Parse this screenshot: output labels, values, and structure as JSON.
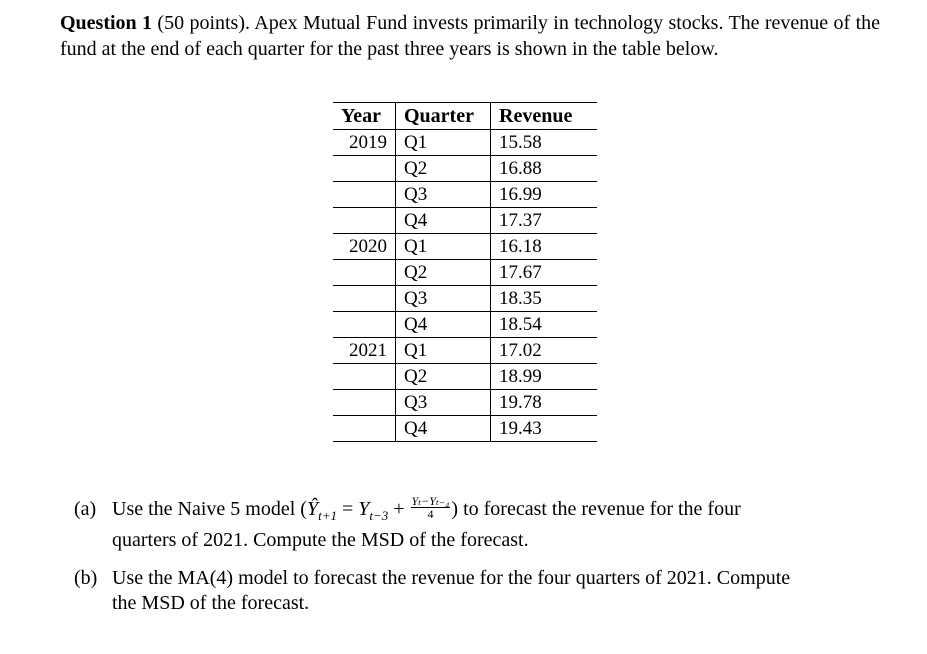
{
  "question": {
    "title": "Question 1",
    "points": "(50 points).",
    "text": "Apex Mutual Fund invests primarily in technology stocks. The revenue of the fund at the end of each quarter for the past three years is shown in the table below."
  },
  "table": {
    "headers": [
      "Year",
      "Quarter",
      "Revenue"
    ],
    "rows": [
      {
        "year": "2019",
        "quarter": "Q1",
        "revenue": "15.58"
      },
      {
        "year": "",
        "quarter": "Q2",
        "revenue": "16.88"
      },
      {
        "year": "",
        "quarter": "Q3",
        "revenue": "16.99"
      },
      {
        "year": "",
        "quarter": "Q4",
        "revenue": "17.37"
      },
      {
        "year": "2020",
        "quarter": "Q1",
        "revenue": "16.18"
      },
      {
        "year": "",
        "quarter": "Q2",
        "revenue": "17.67"
      },
      {
        "year": "",
        "quarter": "Q3",
        "revenue": "18.35"
      },
      {
        "year": "",
        "quarter": "Q4",
        "revenue": "18.54"
      },
      {
        "year": "2021",
        "quarter": "Q1",
        "revenue": "17.02"
      },
      {
        "year": "",
        "quarter": "Q2",
        "revenue": "18.99"
      },
      {
        "year": "",
        "quarter": "Q3",
        "revenue": "19.78"
      },
      {
        "year": "",
        "quarter": "Q4",
        "revenue": "19.43"
      }
    ]
  },
  "part_a": {
    "label": "(a)",
    "text_before": "Use the Naive 5 model (",
    "formula_lhs": "Ŷ",
    "formula_lhs_sub": "t+1",
    "formula_eq": " = ",
    "formula_y": "Y",
    "formula_y_sub": "t−3",
    "formula_plus": " + ",
    "frac_num": "Yₜ−Yₜ₋₄",
    "frac_den": "4",
    "text_after": ") to forecast the revenue for the four",
    "line2": "quarters of 2021. Compute the MSD of the forecast."
  },
  "part_b": {
    "label": "(b)",
    "line1": "Use the MA(4) model to forecast the revenue for the four quarters of 2021. Compute",
    "line2": "the MSD of the forecast."
  }
}
